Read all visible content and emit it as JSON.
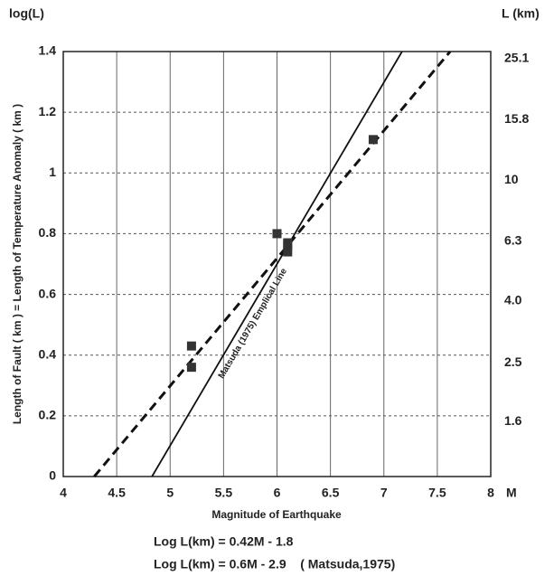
{
  "chart_data": {
    "type": "scatter",
    "title_left": "log(L)",
    "title_right": "L (km)",
    "x_unit": "M",
    "xlabel": "Magnitude of Earthquake",
    "ylabel": "Length of Fault ( km ) = Length of Temperature Anomaly ( km )",
    "xlim": [
      4,
      8
    ],
    "ylim": [
      0,
      1.4
    ],
    "xticks": [
      4,
      4.5,
      5,
      5.5,
      6,
      6.5,
      7,
      7.5,
      8
    ],
    "yticks": [
      0,
      0.2,
      0.4,
      0.6,
      0.8,
      1,
      1.2,
      1.4
    ],
    "y2scale": "log",
    "y2lim": [
      1,
      25.1
    ],
    "y2ticks": [
      1.6,
      2.5,
      {
        "value": 4,
        "label": "4.0"
      },
      6.3,
      10,
      15.8,
      25.1
    ],
    "grid": true,
    "color": "#333333",
    "points": {
      "x": [
        5.2,
        5.2,
        6.0,
        6.1,
        6.1,
        6.1,
        6.9
      ],
      "values": [
        0.43,
        0.36,
        0.8,
        0.77,
        0.76,
        0.74,
        1.11
      ]
    },
    "lines": [
      {
        "x": [
          4.29,
          7.62
        ],
        "values": [
          0,
          1.4
        ],
        "style": "dashed"
      },
      {
        "x": [
          4.83,
          7.17
        ],
        "values": [
          0,
          1.4
        ],
        "style": "solid",
        "label": "Matsuda (1975) Emplical Line"
      }
    ],
    "equations": [
      "Log L(km) = 0.42M - 1.8",
      "Log L(km) = 0.6M - 2.9    ( Matsuda,1975)"
    ]
  }
}
